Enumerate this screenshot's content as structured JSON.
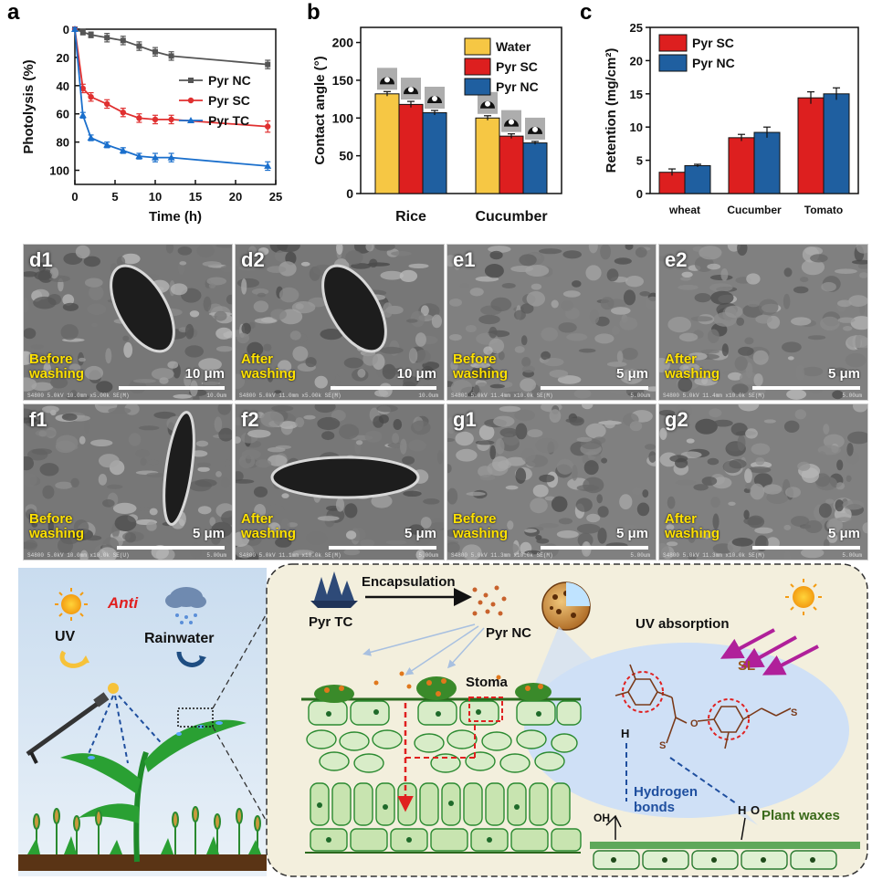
{
  "panels": {
    "a": "a",
    "b": "b",
    "c": "c"
  },
  "chart_data": [
    {
      "id": "a",
      "type": "line",
      "xlabel": "Time (h)",
      "ylabel": "Photolysis (%)",
      "xlim": [
        0,
        25
      ],
      "ylim": [
        0,
        110
      ],
      "y_inverted": true,
      "xticks": [
        "0",
        "5",
        "10",
        "15",
        "20",
        "25"
      ],
      "yticks": [
        "0",
        "20",
        "40",
        "60",
        "80",
        "100"
      ],
      "legend_position": "right",
      "series": [
        {
          "name": "Pyr NC",
          "color": "#555555",
          "marker": "square",
          "x": [
            0,
            1,
            2,
            4,
            6,
            8,
            10,
            12,
            24
          ],
          "y": [
            0,
            2,
            4,
            6,
            8,
            12,
            16,
            19,
            25
          ],
          "err": [
            1,
            2,
            2,
            3,
            3,
            3,
            3,
            3,
            3
          ]
        },
        {
          "name": "Pyr SC",
          "color": "#e03030",
          "marker": "circle",
          "x": [
            0,
            1,
            2,
            4,
            6,
            8,
            10,
            12,
            24
          ],
          "y": [
            0,
            42,
            48,
            53,
            59,
            63,
            64,
            64,
            69
          ],
          "err": [
            1,
            3,
            3,
            3,
            3,
            3,
            3,
            3,
            4
          ]
        },
        {
          "name": "Pyr TC",
          "color": "#1a6fcc",
          "marker": "triangle",
          "x": [
            0,
            1,
            2,
            4,
            6,
            8,
            10,
            12,
            24
          ],
          "y": [
            0,
            61,
            77,
            82,
            86,
            90,
            91,
            91,
            97
          ],
          "err": [
            1,
            2,
            2,
            2,
            2,
            2,
            3,
            3,
            3
          ]
        }
      ]
    },
    {
      "id": "b",
      "type": "bar",
      "ylabel": "Contact angle (°)",
      "ylim": [
        0,
        220
      ],
      "yticks": [
        "0",
        "50",
        "100",
        "150",
        "200"
      ],
      "categories": [
        "Rice",
        "Cucumber"
      ],
      "legend_position": "top-right",
      "series": [
        {
          "name": "Water",
          "color": "#f6c744",
          "values": [
            132,
            100
          ],
          "err": [
            3,
            3
          ]
        },
        {
          "name": "Pyr SC",
          "color": "#dd1f1f",
          "values": [
            118,
            76
          ],
          "err": [
            4,
            3
          ]
        },
        {
          "name": "Pyr NC",
          "color": "#1f5fa0",
          "values": [
            107,
            67
          ],
          "err": [
            3,
            2
          ]
        }
      ]
    },
    {
      "id": "c",
      "type": "bar",
      "ylabel": "Retention (mg/cm²)",
      "ylim": [
        0,
        25
      ],
      "yticks": [
        "0",
        "5",
        "10",
        "15",
        "20",
        "25"
      ],
      "categories": [
        "wheat",
        "Cucumber",
        "Tomato"
      ],
      "legend_position": "top-left",
      "series": [
        {
          "name": "Pyr SC",
          "color": "#dd1f1f",
          "values": [
            3.2,
            8.4,
            14.4
          ],
          "err": [
            0.5,
            0.5,
            0.9
          ]
        },
        {
          "name": "Pyr NC",
          "color": "#1f5fa0",
          "values": [
            4.2,
            9.2,
            15.0
          ],
          "err": [
            0.2,
            0.8,
            0.9
          ]
        }
      ]
    }
  ],
  "sem": [
    {
      "id": "d1",
      "cond": "Before\nwashing",
      "scale": "10 μm",
      "meta": "S4800 5.0kV 10.0mm x5.00k SE(M)",
      "meta2": "10.0um"
    },
    {
      "id": "d2",
      "cond": "After\nwashing",
      "scale": "10 μm",
      "meta": "S4800 5.0kV 11.0mm x5.00k SE(M)",
      "meta2": "10.0um"
    },
    {
      "id": "e1",
      "cond": "Before\nwashing",
      "scale": "5 μm",
      "meta": "S4800 5.0kV 11.4mm x10.0k SE(M)",
      "meta2": "5.00um"
    },
    {
      "id": "e2",
      "cond": "After\nwashing",
      "scale": "5 μm",
      "meta": "S4800 5.0kV 11.4mm x10.0k SE(M)",
      "meta2": "5.00um"
    },
    {
      "id": "f1",
      "cond": "Before\nwashing",
      "scale": "5 μm",
      "meta": "S4800 5.0kV 10.0mm x10.0k SE(U)",
      "meta2": "5.00um"
    },
    {
      "id": "f2",
      "cond": "After\nwashing",
      "scale": "5 μm",
      "meta": "S4800 5.0kV 11.1mm x10.0k SE(M)",
      "meta2": "5.00um"
    },
    {
      "id": "g1",
      "cond": "Before\nwashing",
      "scale": "5 μm",
      "meta": "S4800 5.0kV 11.3mm x10.0k SE(M)",
      "meta2": "5.00um"
    },
    {
      "id": "g2",
      "cond": "After\nwashing",
      "scale": "5 μm",
      "meta": "S4800 5.0kV 11.3mm x10.0k SE(M)",
      "meta2": "5.00um"
    }
  ],
  "schematic": {
    "uv": "UV",
    "anti": "Anti",
    "rainwater": "Rainwater",
    "encapsulation": "Encapsulation",
    "pyr_tc": "Pyr TC",
    "pyr_nc": "Pyr NC",
    "uv_absorption": "UV absorption",
    "stoma": "Stoma",
    "sl": "SL",
    "hydrogen_bonds": "Hydrogen\nbonds",
    "plant_waxes": "Plant waxes",
    "h": "H",
    "oh": "OH",
    "o": "O"
  },
  "colors": {
    "anti": "#e02020",
    "sun": "#f6a800",
    "arrow_uv": "#b0209a",
    "sl_text": "#9a5a1c",
    "hbond_text": "#1f4f9f",
    "waxes_text": "#3a6a1a"
  }
}
